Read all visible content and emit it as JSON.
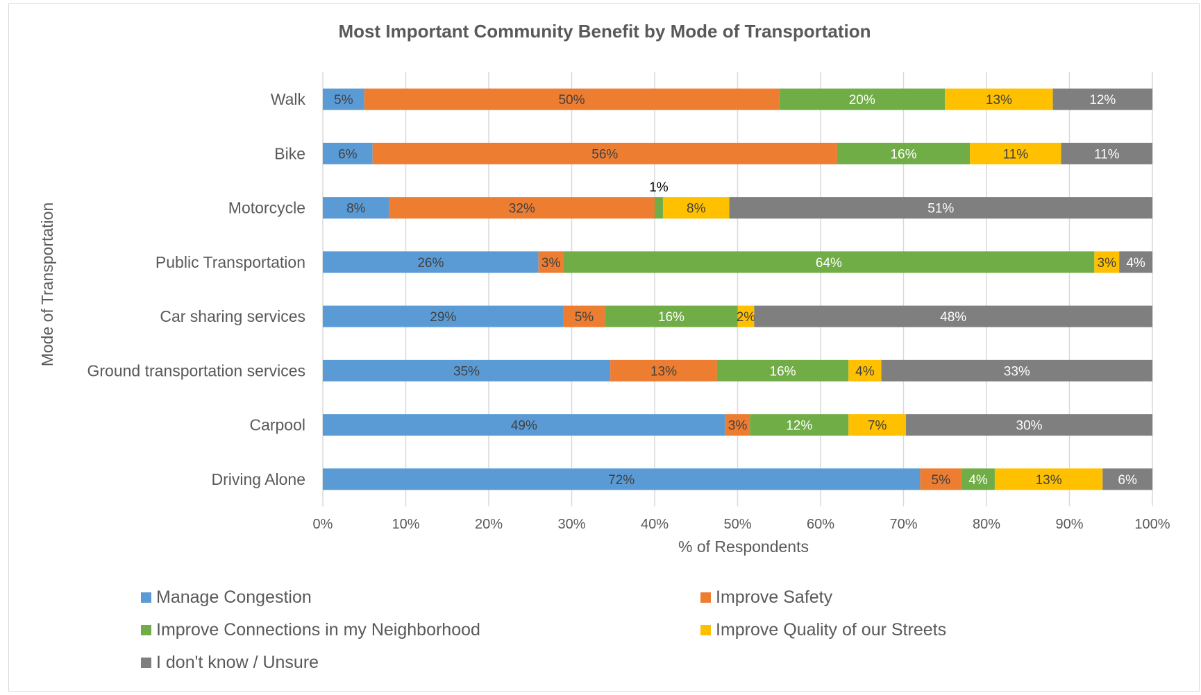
{
  "chart_data": {
    "type": "bar",
    "orientation": "horizontal",
    "stacked": "100%",
    "title": "Most Important Community Benefit by Mode of Transportation",
    "xlabel": "% of Respondents",
    "ylabel": "Mode of Transportation",
    "xlim": [
      0,
      100
    ],
    "x_ticks": [
      "0%",
      "10%",
      "20%",
      "30%",
      "40%",
      "50%",
      "60%",
      "70%",
      "80%",
      "90%",
      "100%"
    ],
    "grid": true,
    "legend_position": "bottom",
    "categories": [
      "Walk",
      "Bike",
      "Motorcycle",
      "Public Transportation",
      "Car sharing services",
      "Ground transportation services",
      "Carpool",
      "Driving Alone"
    ],
    "series": [
      {
        "name": "Manage Congestion",
        "color": "#5b9bd5",
        "label_color": "#404040",
        "values": [
          5,
          6,
          8,
          26,
          29,
          35,
          49,
          72
        ]
      },
      {
        "name": "Improve Safety",
        "color": "#ed7d31",
        "label_color": "#404040",
        "values": [
          50,
          56,
          32,
          3,
          5,
          13,
          3,
          5
        ]
      },
      {
        "name": "Improve Connections in my Neighborhood",
        "color": "#70ad47",
        "label_color": "#ffffff",
        "values": [
          20,
          16,
          1,
          64,
          16,
          16,
          12,
          4
        ]
      },
      {
        "name": "Improve Quality of our Streets",
        "color": "#ffc000",
        "label_color": "#404040",
        "values": [
          13,
          11,
          8,
          3,
          2,
          4,
          7,
          13
        ]
      },
      {
        "name": "I don't know / Unsure",
        "color": "#7f7f7f",
        "label_color": "#ffffff",
        "values": [
          12,
          11,
          51,
          4,
          48,
          33,
          30,
          6
        ]
      }
    ]
  }
}
